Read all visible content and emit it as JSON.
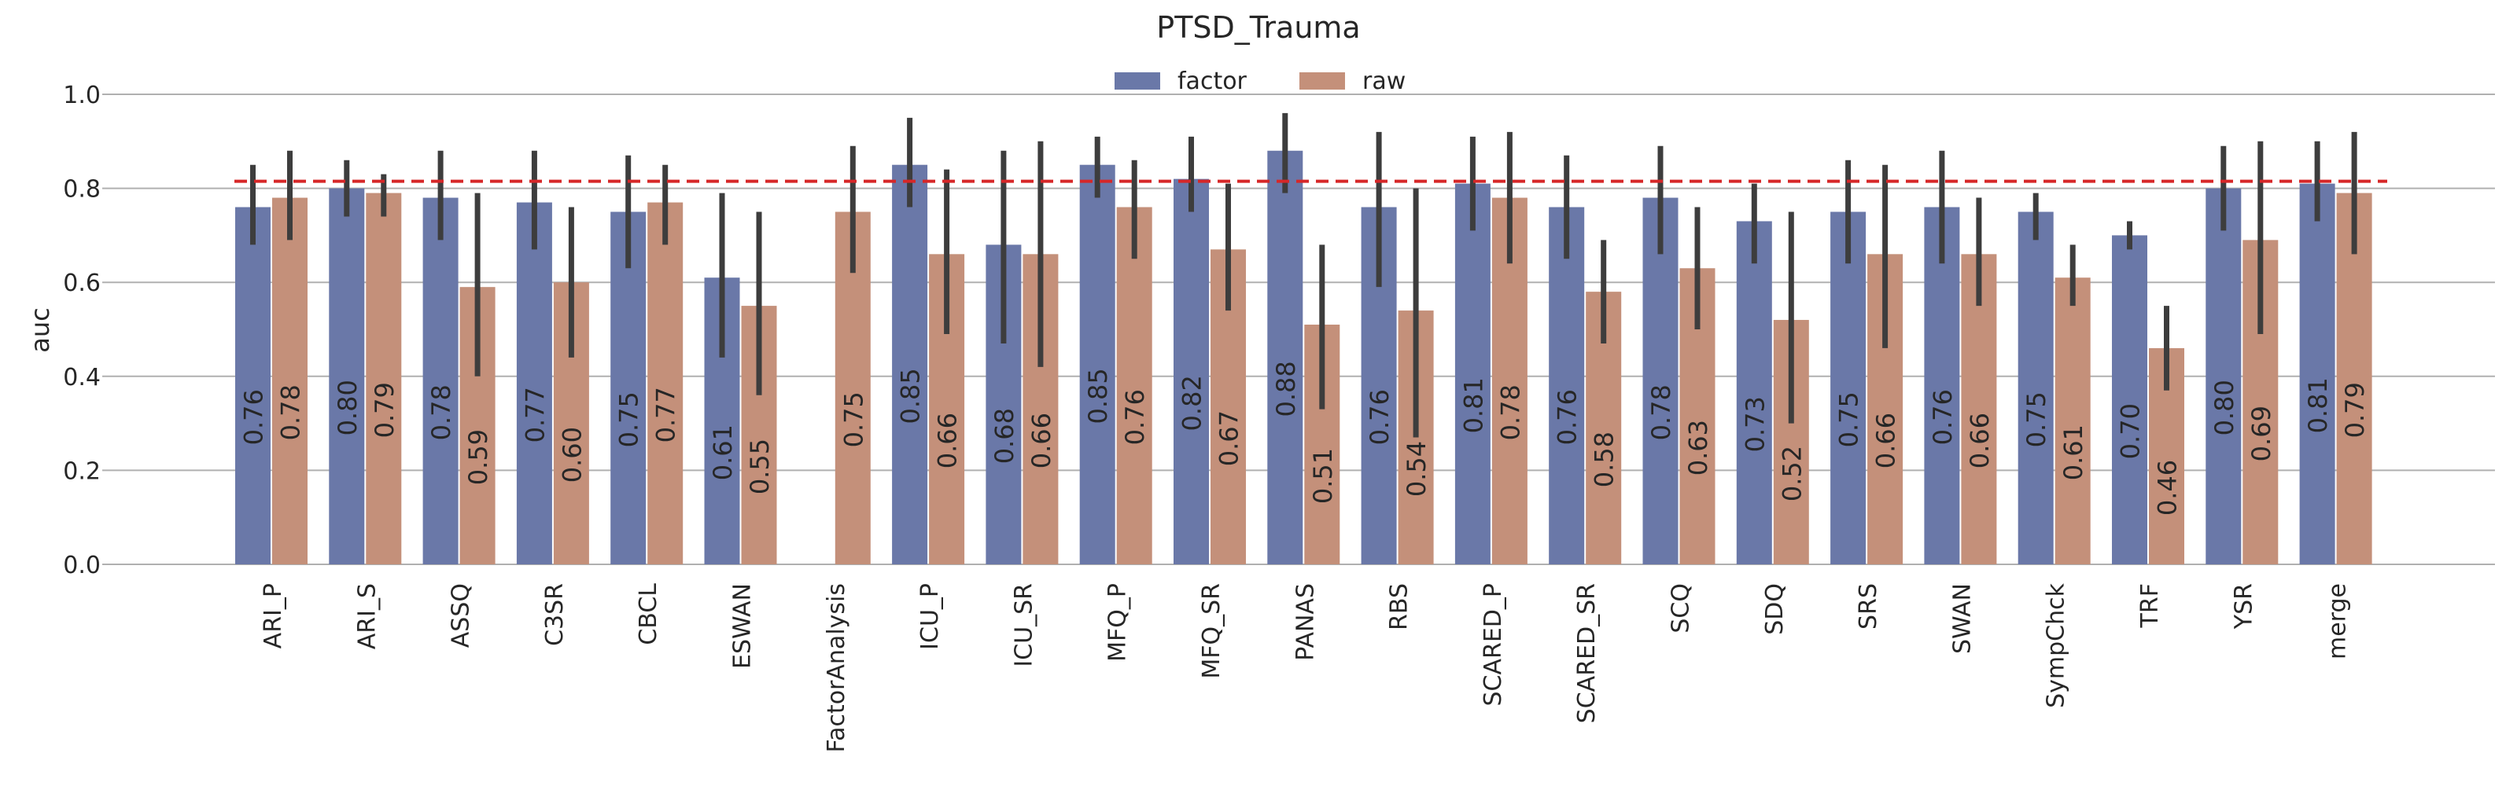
{
  "chart_data": {
    "type": "bar",
    "title": "PTSD_Trauma",
    "xlabel": "",
    "ylabel": "auc",
    "ylim": [
      0,
      1.0
    ],
    "yticks": [
      "0.0",
      "0.2",
      "0.4",
      "0.6",
      "0.8",
      "1.0"
    ],
    "grid": true,
    "legend_position": "top-center",
    "reference_line": 0.815,
    "colors": {
      "factor": "#6a78a8",
      "raw": "#c4907a",
      "reference": "#d62728"
    },
    "categories": [
      "ARI_P",
      "ARI_S",
      "ASSQ",
      "C3SR",
      "CBCL",
      "ESWAN",
      "FactorAnalysis",
      "ICU_P",
      "ICU_SR",
      "MFQ_P",
      "MFQ_SR",
      "PANAS",
      "RBS",
      "SCARED_P",
      "SCARED_SR",
      "SCQ",
      "SDQ",
      "SRS",
      "SWAN",
      "SympChck",
      "TRF",
      "YSR",
      "merge"
    ],
    "series": [
      {
        "name": "factor",
        "values": [
          0.76,
          0.8,
          0.78,
          0.77,
          0.75,
          0.61,
          null,
          0.85,
          0.68,
          0.85,
          0.82,
          0.88,
          0.76,
          0.81,
          0.76,
          0.78,
          0.73,
          0.75,
          0.76,
          0.75,
          0.7,
          0.8,
          0.81
        ],
        "labels": [
          "0.76",
          "0.80",
          "0.78",
          "0.77",
          "0.75",
          "0.61",
          "",
          "0.85",
          "0.68",
          "0.85",
          "0.82",
          "0.88",
          "0.76",
          "0.81",
          "0.76",
          "0.78",
          "0.73",
          "0.75",
          "0.76",
          "0.75",
          "0.70",
          "0.80",
          "0.81"
        ],
        "ci_low": [
          0.68,
          0.74,
          0.69,
          0.67,
          0.63,
          0.44,
          null,
          0.76,
          0.47,
          0.78,
          0.75,
          0.79,
          0.59,
          0.71,
          0.65,
          0.66,
          0.64,
          0.64,
          0.64,
          0.69,
          0.67,
          0.71,
          0.73
        ],
        "ci_high": [
          0.85,
          0.86,
          0.88,
          0.88,
          0.87,
          0.79,
          null,
          0.95,
          0.88,
          0.91,
          0.91,
          0.96,
          0.92,
          0.91,
          0.87,
          0.89,
          0.81,
          0.86,
          0.88,
          0.79,
          0.73,
          0.89,
          0.9
        ]
      },
      {
        "name": "raw",
        "values": [
          0.78,
          0.79,
          0.59,
          0.6,
          0.77,
          0.55,
          0.75,
          0.66,
          0.66,
          0.76,
          0.67,
          0.51,
          0.54,
          0.78,
          0.58,
          0.63,
          0.52,
          0.66,
          0.66,
          0.61,
          0.46,
          0.69,
          0.79
        ],
        "labels": [
          "0.78",
          "0.79",
          "0.59",
          "0.60",
          "0.77",
          "0.55",
          "0.75",
          "0.66",
          "0.66",
          "0.76",
          "0.67",
          "0.51",
          "0.54",
          "0.78",
          "0.58",
          "0.63",
          "0.52",
          "0.66",
          "0.66",
          "0.61",
          "0.46",
          "0.69",
          "0.79"
        ],
        "ci_low": [
          0.69,
          0.74,
          0.4,
          0.44,
          0.68,
          0.36,
          0.62,
          0.49,
          0.42,
          0.65,
          0.54,
          0.33,
          0.27,
          0.64,
          0.47,
          0.5,
          0.3,
          0.46,
          0.55,
          0.55,
          0.37,
          0.49,
          0.66
        ],
        "ci_high": [
          0.88,
          0.83,
          0.79,
          0.76,
          0.85,
          0.75,
          0.89,
          0.84,
          0.9,
          0.86,
          0.81,
          0.68,
          0.8,
          0.92,
          0.69,
          0.76,
          0.75,
          0.85,
          0.78,
          0.68,
          0.55,
          0.9,
          0.92
        ]
      }
    ]
  }
}
